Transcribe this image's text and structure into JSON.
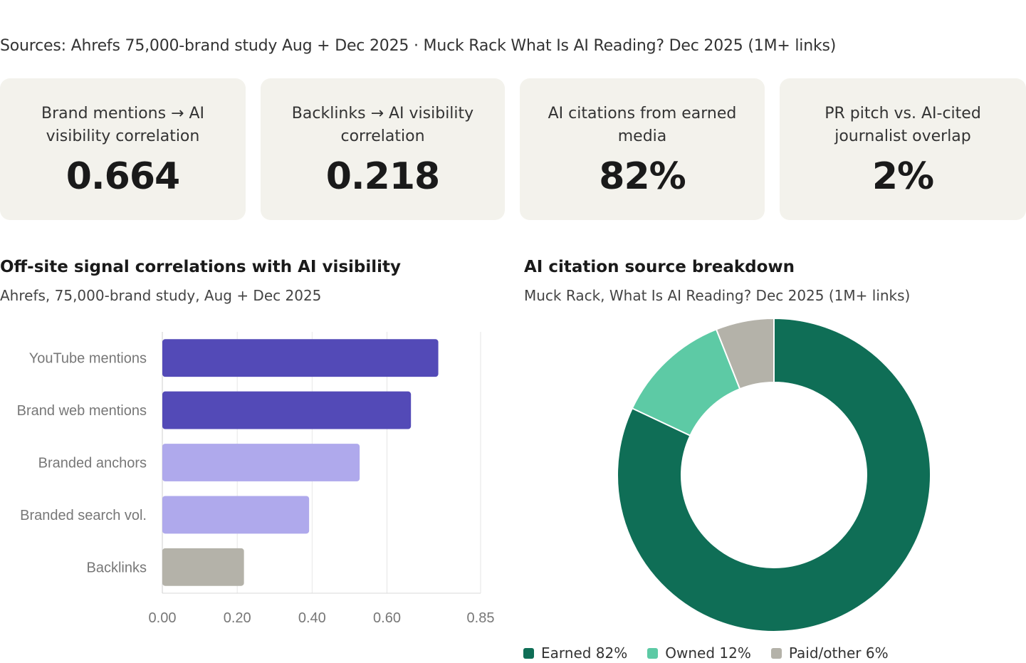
{
  "sources": "Sources: Ahrefs 75,000-brand study Aug + Dec 2025 · Muck Rack What Is AI Reading? Dec 2025 (1M+ links)",
  "cards": [
    {
      "label": "Brand mentions → AI visibility correlation",
      "value": "0.664"
    },
    {
      "label": "Backlinks → AI visibility correlation",
      "value": "0.218"
    },
    {
      "label": "AI citations from earned media",
      "value": "82%"
    },
    {
      "label": "PR pitch vs. AI-cited journalist overlap",
      "value": "2%"
    }
  ],
  "chart_data": [
    {
      "type": "bar",
      "orientation": "horizontal",
      "title": "Off-site signal correlations with AI visibility",
      "subtitle": "Ahrefs, 75,000-brand study, Aug + Dec 2025",
      "categories": [
        "YouTube mentions",
        "Brand web mentions",
        "Branded anchors",
        "Branded search vol.",
        "Backlinks"
      ],
      "values": [
        0.737,
        0.664,
        0.527,
        0.392,
        0.218
      ],
      "colors": [
        "#534ab7",
        "#534ab7",
        "#afa9ec",
        "#afa9ec",
        "#b4b2a9"
      ],
      "xlim": [
        0,
        0.85
      ],
      "xticks": [
        "0.00",
        "0.20",
        "0.40",
        "0.60",
        "0.85"
      ],
      "grid": true
    },
    {
      "type": "pie",
      "donut": true,
      "title": "AI citation source breakdown",
      "subtitle": "Muck Rack, What Is AI Reading? Dec 2025 (1M+ links)",
      "categories": [
        "Earned",
        "Owned",
        "Paid/other"
      ],
      "values": [
        82,
        12,
        6
      ],
      "colors": [
        "#0f6e56",
        "#5dcaa5",
        "#b4b2a9"
      ],
      "legend": [
        "Earned 82%",
        "Owned 12%",
        "Paid/other 6%"
      ],
      "legend_position": "bottom"
    }
  ]
}
